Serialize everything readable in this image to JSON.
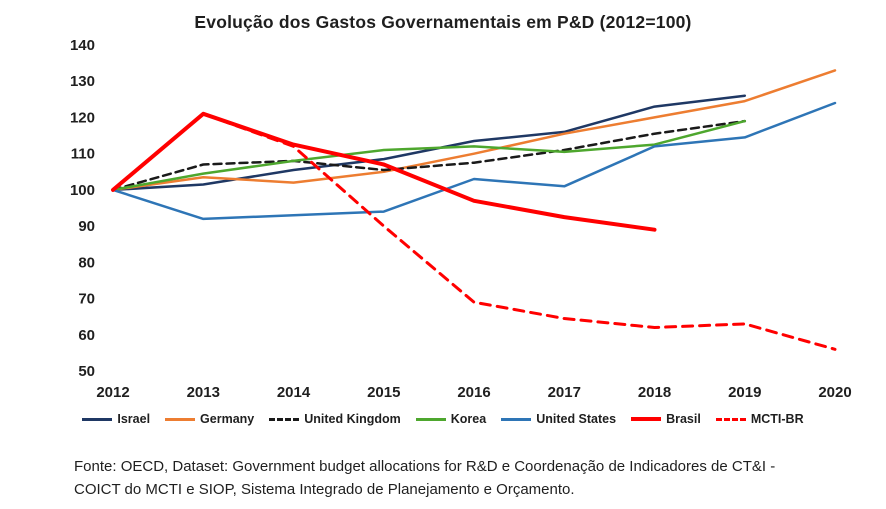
{
  "chart_data": {
    "type": "line",
    "title": "Evolução dos Gastos Governamentais em P&D (2012=100)",
    "categories": [
      "2012",
      "2013",
      "2014",
      "2015",
      "2016",
      "2017",
      "2018",
      "2019",
      "2020"
    ],
    "ylim": [
      50,
      140
    ],
    "yticks": [
      50,
      60,
      70,
      80,
      90,
      100,
      110,
      120,
      130,
      140
    ],
    "grid": false,
    "legend_position": "bottom",
    "series": [
      {
        "name": "Israel",
        "color": "#1f3864",
        "style": "solid",
        "width": 2.5,
        "values": [
          100,
          101.5,
          105.5,
          108.5,
          113.5,
          116,
          123,
          126,
          null
        ]
      },
      {
        "name": "Germany",
        "color": "#ed7d31",
        "style": "solid",
        "width": 2.5,
        "values": [
          100,
          103.5,
          102,
          105,
          110,
          115.5,
          120,
          124.5,
          133
        ]
      },
      {
        "name": "United Kingdom",
        "color": "#1a1a1a",
        "style": "dashed",
        "width": 2.5,
        "values": [
          100,
          107,
          108,
          105.5,
          107.5,
          111,
          115.5,
          119,
          null
        ]
      },
      {
        "name": "Korea",
        "color": "#4ea72e",
        "style": "solid",
        "width": 2.5,
        "values": [
          100,
          104.5,
          108,
          111,
          112,
          110.5,
          112.5,
          119,
          null
        ]
      },
      {
        "name": "United States",
        "color": "#2e75b6",
        "style": "solid",
        "width": 2.5,
        "values": [
          100,
          92,
          93,
          94,
          103,
          101,
          112,
          114.5,
          124
        ]
      },
      {
        "name": "Brasil",
        "color": "#ff0000",
        "style": "solid",
        "width": 4,
        "values": [
          100,
          121,
          112.5,
          107,
          97,
          92.5,
          89,
          null,
          null
        ]
      },
      {
        "name": "MCTI-BR",
        "color": "#ff0000",
        "style": "dashed",
        "width": 3,
        "values": [
          100,
          121,
          112,
          90,
          69,
          64.5,
          62,
          63,
          56
        ]
      }
    ]
  },
  "footer": {
    "line1": "Fonte: OECD, Dataset: Government budget allocations for R&D e Coordenação de Indicadores de CT&I -",
    "line2": "COICT do MCTI e SIOP, Sistema Integrado de Planejamento e Orçamento."
  }
}
